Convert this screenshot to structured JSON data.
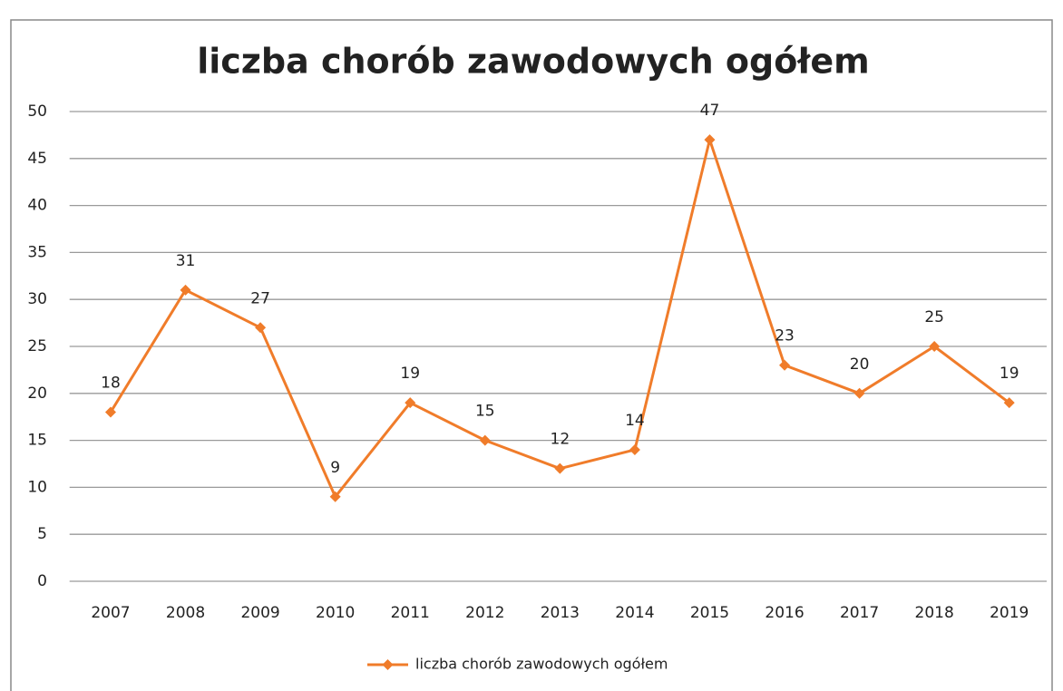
{
  "chart_data": {
    "type": "line",
    "title": "liczba chorób zawodowych ogółem",
    "categories": [
      "2007",
      "2008",
      "2009",
      "2010",
      "2011",
      "2012",
      "2013",
      "2014",
      "2015",
      "2016",
      "2017",
      "2018",
      "2019"
    ],
    "series": [
      {
        "name": "liczba chorób zawodowych ogółem",
        "color": "#f07c2a",
        "values": [
          18,
          31,
          27,
          9,
          19,
          15,
          12,
          14,
          47,
          23,
          20,
          25,
          19
        ]
      }
    ],
    "ylim": [
      0,
      50
    ],
    "yticks": [
      0,
      5,
      10,
      15,
      20,
      25,
      30,
      35,
      40,
      45,
      50
    ],
    "grid": true,
    "legend": "bottom"
  }
}
